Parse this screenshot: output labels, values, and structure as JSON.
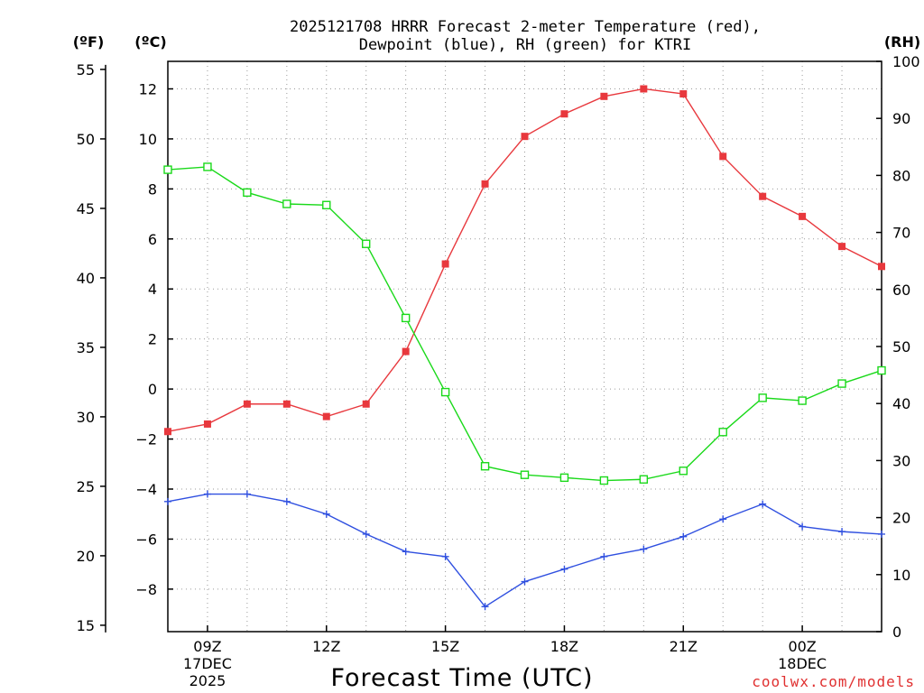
{
  "chart_data": {
    "type": "line",
    "title": [
      "2025121708 HRRR Forecast 2-meter Temperature (red),",
      "Dewpoint (blue), RH (green) for KTRI"
    ],
    "xlabel": "Forecast Time (UTC)",
    "units": {
      "fahrenheit": "(ºF)",
      "celsius": "(ºC)",
      "rh": "(RH)"
    },
    "credit": "coolwx.com/models",
    "x_hours": [
      8,
      9,
      10,
      11,
      12,
      13,
      14,
      15,
      16,
      17,
      18,
      19,
      20,
      21,
      22,
      23,
      24,
      25,
      26
    ],
    "x_ticks": [
      {
        "hour": 9,
        "lines": [
          "09Z",
          "17DEC",
          "2025"
        ]
      },
      {
        "hour": 12,
        "lines": [
          "12Z"
        ]
      },
      {
        "hour": 15,
        "lines": [
          "15Z"
        ]
      },
      {
        "hour": 18,
        "lines": [
          "18Z"
        ]
      },
      {
        "hour": 21,
        "lines": [
          "21Z"
        ]
      },
      {
        "hour": 24,
        "lines": [
          "00Z",
          "18DEC"
        ]
      }
    ],
    "xlim": [
      8,
      26
    ],
    "ylim_celsius": [
      -9.7,
      13.1
    ],
    "ylim_rh": [
      0,
      100
    ],
    "ticks_celsius": [
      12,
      10,
      8,
      6,
      4,
      2,
      0,
      -2,
      -4,
      -6,
      -8
    ],
    "tick_labels_celsius": [
      "12",
      "10",
      "8",
      "6",
      "4",
      "2",
      "0",
      "−2",
      "−4",
      "−6",
      "−8"
    ],
    "ticks_fahrenheit": [
      55,
      50,
      45,
      40,
      35,
      30,
      25,
      20,
      15
    ],
    "tick_labels_fahrenheit": [
      "55",
      "50",
      "45",
      "40",
      "35",
      "30",
      "25",
      "20",
      "15"
    ],
    "ticks_rh": [
      100,
      90,
      80,
      70,
      60,
      50,
      40,
      30,
      20,
      10,
      0
    ],
    "tick_labels_rh": [
      "100",
      "90",
      "80",
      "70",
      "60",
      "50",
      "40",
      "30",
      "20",
      "10",
      "0"
    ],
    "series": [
      {
        "name": "Temperature",
        "axis": "celsius",
        "color": "#e8383d",
        "marker": "filled-square",
        "values": [
          -1.7,
          -1.4,
          -0.6,
          -0.6,
          -1.1,
          -0.6,
          1.5,
          5.0,
          8.2,
          10.1,
          11.0,
          11.7,
          12.0,
          11.8,
          9.3,
          7.7,
          6.9,
          5.7,
          4.9
        ]
      },
      {
        "name": "Dewpoint",
        "axis": "celsius",
        "color": "#3050e0",
        "marker": "plus",
        "values": [
          -4.5,
          -4.2,
          -4.2,
          -4.5,
          -5.0,
          -5.8,
          -6.5,
          -6.7,
          -8.7,
          -7.7,
          -7.2,
          -6.7,
          -6.4,
          -5.9,
          -5.2,
          -4.6,
          -5.5,
          -5.7,
          -5.8
        ]
      },
      {
        "name": "RH",
        "axis": "rh",
        "color": "#1ad91a",
        "marker": "open-square",
        "values": [
          81,
          81.5,
          77,
          75,
          74.8,
          68,
          55,
          42,
          29,
          27.5,
          27,
          26.5,
          26.7,
          28.2,
          35,
          41,
          40.5,
          43.5,
          45.8
        ]
      }
    ]
  }
}
